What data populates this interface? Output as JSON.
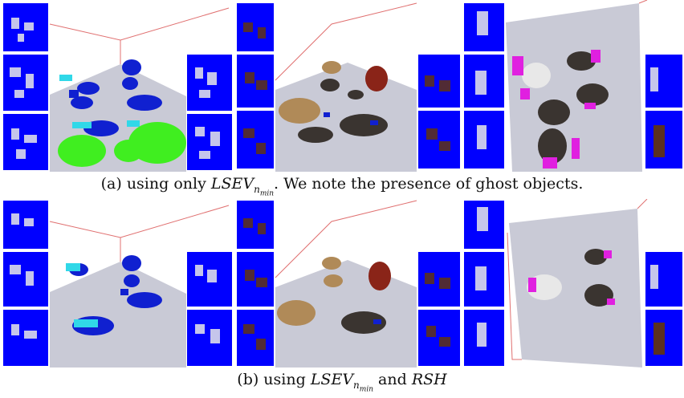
{
  "figure": {
    "caption_a": {
      "prefix": "(a) using only ",
      "math_base": "LSEV",
      "math_sub": "n",
      "math_subsub": "min",
      "suffix": ". We note the presence of ghost objects."
    },
    "caption_b": {
      "prefix": "(b) using ",
      "math_base": "LSEV",
      "math_sub": "n",
      "math_subsub": "min",
      "middle": " and ",
      "math2": "RSH"
    }
  },
  "colors": {
    "thumb_bg": "#0000ff",
    "floor": "#c9cad6",
    "wall_line": "#e07070",
    "voxel_blue": "#1020d0",
    "voxel_cyan": "#30d8e8",
    "voxel_green": "#40ee20",
    "voxel_red": "#8a2418",
    "voxel_tan": "#b08a58",
    "voxel_dark": "#3a3430",
    "voxel_magenta": "#e020e0",
    "voxel_white": "#e8e8e8"
  }
}
